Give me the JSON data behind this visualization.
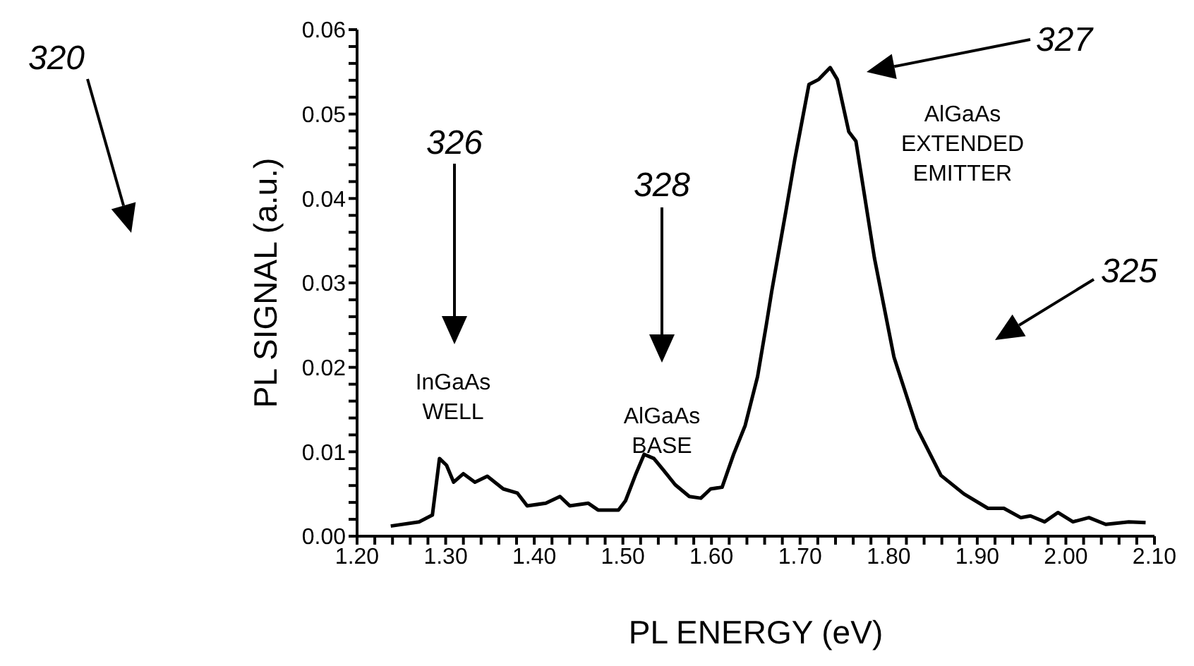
{
  "chart_data": {
    "type": "line",
    "xlabel": "PL ENERGY (eV)",
    "ylabel": "PL SIGNAL (a.u.)",
    "xlim": [
      1.2,
      2.1
    ],
    "ylim": [
      0,
      0.06
    ],
    "xticks": [
      {
        "value": 1.2,
        "label": "1.20"
      },
      {
        "value": 1.22,
        "label": null
      },
      {
        "value": 1.24,
        "label": null
      },
      {
        "value": 1.26,
        "label": null
      },
      {
        "value": 1.28,
        "label": null
      },
      {
        "value": 1.3,
        "label": "1.30"
      },
      {
        "value": 1.32,
        "label": null
      },
      {
        "value": 1.34,
        "label": null
      },
      {
        "value": 1.36,
        "label": null
      },
      {
        "value": 1.38,
        "label": null
      },
      {
        "value": 1.4,
        "label": "1.40"
      },
      {
        "value": 1.42,
        "label": null
      },
      {
        "value": 1.44,
        "label": null
      },
      {
        "value": 1.46,
        "label": null
      },
      {
        "value": 1.48,
        "label": null
      },
      {
        "value": 1.5,
        "label": "1.50"
      },
      {
        "value": 1.52,
        "label": null
      },
      {
        "value": 1.54,
        "label": null
      },
      {
        "value": 1.56,
        "label": null
      },
      {
        "value": 1.58,
        "label": null
      },
      {
        "value": 1.6,
        "label": "1.60"
      },
      {
        "value": 1.62,
        "label": null
      },
      {
        "value": 1.64,
        "label": null
      },
      {
        "value": 1.66,
        "label": null
      },
      {
        "value": 1.68,
        "label": null
      },
      {
        "value": 1.7,
        "label": "1.70"
      },
      {
        "value": 1.72,
        "label": null
      },
      {
        "value": 1.74,
        "label": null
      },
      {
        "value": 1.76,
        "label": null
      },
      {
        "value": 1.78,
        "label": null
      },
      {
        "value": 1.8,
        "label": "1.80"
      },
      {
        "value": 1.82,
        "label": null
      },
      {
        "value": 1.84,
        "label": null
      },
      {
        "value": 1.86,
        "label": null
      },
      {
        "value": 1.88,
        "label": null
      },
      {
        "value": 1.9,
        "label": "1.90"
      },
      {
        "value": 1.92,
        "label": null
      },
      {
        "value": 1.94,
        "label": null
      },
      {
        "value": 1.96,
        "label": null
      },
      {
        "value": 1.98,
        "label": null
      },
      {
        "value": 2.0,
        "label": "2.00"
      },
      {
        "value": 2.02,
        "label": null
      },
      {
        "value": 2.04,
        "label": null
      },
      {
        "value": 2.06,
        "label": null
      },
      {
        "value": 2.08,
        "label": null
      },
      {
        "value": 2.1,
        "label": "2.10"
      }
    ],
    "yticks": [
      {
        "value": 0,
        "label": "0.00"
      },
      {
        "value": 0.002,
        "label": null
      },
      {
        "value": 0.004,
        "label": null
      },
      {
        "value": 0.006,
        "label": null
      },
      {
        "value": 0.008,
        "label": null
      },
      {
        "value": 0.01,
        "label": "0.01"
      },
      {
        "value": 0.012,
        "label": null
      },
      {
        "value": 0.014,
        "label": null
      },
      {
        "value": 0.016,
        "label": null
      },
      {
        "value": 0.018,
        "label": null
      },
      {
        "value": 0.02,
        "label": "0.02"
      },
      {
        "value": 0.022,
        "label": null
      },
      {
        "value": 0.024,
        "label": null
      },
      {
        "value": 0.026,
        "label": null
      },
      {
        "value": 0.028,
        "label": null
      },
      {
        "value": 0.03,
        "label": "0.03"
      },
      {
        "value": 0.032,
        "label": null
      },
      {
        "value": 0.034,
        "label": null
      },
      {
        "value": 0.036,
        "label": null
      },
      {
        "value": 0.038,
        "label": null
      },
      {
        "value": 0.04,
        "label": "0.04"
      },
      {
        "value": 0.042,
        "label": null
      },
      {
        "value": 0.044,
        "label": null
      },
      {
        "value": 0.046,
        "label": null
      },
      {
        "value": 0.048,
        "label": null
      },
      {
        "value": 0.05,
        "label": "0.05"
      },
      {
        "value": 0.052,
        "label": null
      },
      {
        "value": 0.054,
        "label": null
      },
      {
        "value": 0.056,
        "label": null
      },
      {
        "value": 0.058,
        "label": null
      },
      {
        "value": 0.06,
        "label": "0.06"
      }
    ],
    "marker": "none",
    "line_style": "solid",
    "series": [
      {
        "color": "#000000",
        "x": [
          1.238,
          1.27,
          1.285,
          1.293,
          1.301,
          1.309,
          1.32,
          1.333,
          1.347,
          1.365,
          1.381,
          1.392,
          1.413,
          1.429,
          1.44,
          1.461,
          1.472,
          1.495,
          1.503,
          1.514,
          1.524,
          1.535,
          1.546,
          1.559,
          1.575,
          1.588,
          1.599,
          1.612,
          1.625,
          1.638,
          1.652,
          1.662,
          1.668,
          1.684,
          1.694,
          1.71,
          1.721,
          1.734,
          1.742,
          1.755,
          1.763,
          1.784,
          1.806,
          1.832,
          1.859,
          1.885,
          1.912,
          1.93,
          1.949,
          1.96,
          1.976,
          1.991,
          2.008,
          2.026,
          2.045,
          2.071,
          2.09
        ],
        "values": [
          0.0012,
          0.0017,
          0.0025,
          0.0092,
          0.0084,
          0.0064,
          0.0074,
          0.0064,
          0.0071,
          0.0056,
          0.0051,
          0.0036,
          0.0039,
          0.0047,
          0.0036,
          0.0039,
          0.0031,
          0.0031,
          0.0042,
          0.0072,
          0.0097,
          0.0092,
          0.0078,
          0.0061,
          0.0047,
          0.0045,
          0.0056,
          0.0058,
          0.0097,
          0.0131,
          0.0189,
          0.0251,
          0.029,
          0.0385,
          0.0446,
          0.0535,
          0.0541,
          0.0555,
          0.0541,
          0.0479,
          0.0468,
          0.0329,
          0.0212,
          0.0128,
          0.0072,
          0.005,
          0.0033,
          0.0033,
          0.0022,
          0.0024,
          0.0017,
          0.0028,
          0.0017,
          0.0022,
          0.0014,
          0.0017,
          0.0016
        ]
      }
    ],
    "annotations": [
      "320",
      "326",
      "328",
      "327",
      "325",
      "InGaAs\nWELL",
      "AlGaAs\nBASE",
      "AlGaAs\nEXTENDED\nEMITTER"
    ]
  }
}
